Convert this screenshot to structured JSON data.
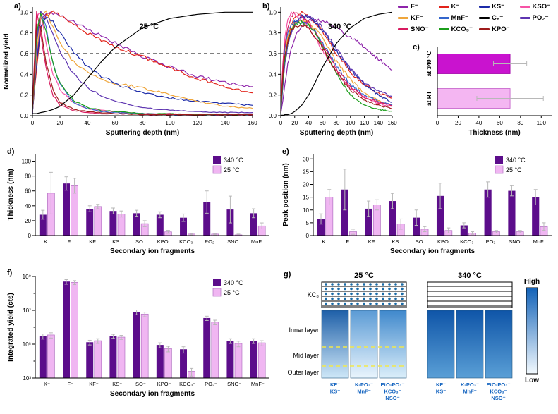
{
  "legend": {
    "items": [
      {
        "label": "F⁻",
        "color": "#8E24AA"
      },
      {
        "label": "K⁻",
        "color": "#E2231A"
      },
      {
        "label": "KS⁻",
        "color": "#1C2BA8"
      },
      {
        "label": "KSO⁻",
        "color": "#F653A6"
      },
      {
        "label": "KF⁻",
        "color": "#EFA63C"
      },
      {
        "label": "MnF⁻",
        "color": "#3366CC"
      },
      {
        "label": "C₈⁻",
        "color": "#000000"
      },
      {
        "label": "PO₂⁻",
        "color": "#5E35B1"
      },
      {
        "label": "SNO⁻",
        "color": "#D81B60"
      },
      {
        "label": "KCO₃⁻",
        "color": "#1B9E1B"
      },
      {
        "label": "KPO⁻",
        "color": "#9E1B1B"
      }
    ]
  },
  "chart_data": [
    {
      "id": "a",
      "type": "line",
      "panel_label": "a)",
      "annotation": "25 °C",
      "xlabel": "Sputtering depth (nm)",
      "ylabel": "Normalized yield",
      "xlim": [
        0,
        160
      ],
      "ylim": [
        0,
        1.05
      ],
      "xticks": [
        0,
        20,
        40,
        60,
        80,
        100,
        120,
        140,
        160
      ],
      "yticks": [
        0.0,
        0.2,
        0.4,
        0.6,
        0.8,
        1.0
      ],
      "dashed_y": 0.6,
      "x": [
        0,
        3,
        6,
        10,
        15,
        20,
        30,
        40,
        50,
        60,
        80,
        100,
        120,
        140,
        160
      ],
      "series": [
        {
          "name": "F⁻",
          "values": [
            0.02,
            0.55,
            0.92,
            1.0,
            0.99,
            0.97,
            0.91,
            0.84,
            0.77,
            0.7,
            0.57,
            0.47,
            0.38,
            0.32,
            0.28
          ]
        },
        {
          "name": "K⁻",
          "values": [
            0.03,
            0.45,
            0.85,
            0.98,
            1.0,
            0.97,
            0.88,
            0.8,
            0.73,
            0.67,
            0.57,
            0.46,
            0.36,
            0.28,
            0.22
          ]
        },
        {
          "name": "KS⁻",
          "values": [
            0.02,
            0.5,
            0.85,
            0.95,
            0.9,
            0.8,
            0.62,
            0.48,
            0.38,
            0.31,
            0.22,
            0.17,
            0.14,
            0.12,
            0.1
          ]
        },
        {
          "name": "KSO⁻",
          "values": [
            0.05,
            0.95,
            1.0,
            0.7,
            0.4,
            0.25,
            0.12,
            0.07,
            0.05,
            0.04,
            0.02,
            0.02,
            0.01,
            0.01,
            0.01
          ]
        },
        {
          "name": "KF⁻",
          "values": [
            0.03,
            0.6,
            0.95,
            1.0,
            0.85,
            0.7,
            0.52,
            0.43,
            0.36,
            0.31,
            0.27,
            0.2,
            0.14,
            0.09,
            0.07
          ]
        },
        {
          "name": "MnF⁻",
          "values": [
            0.05,
            0.75,
            1.0,
            0.85,
            0.5,
            0.3,
            0.13,
            0.07,
            0.04,
            0.03,
            0.02,
            0.01,
            0.01,
            0.01,
            0.01
          ]
        },
        {
          "name": "PO₂⁻",
          "values": [
            0.04,
            0.7,
            1.0,
            0.95,
            0.8,
            0.62,
            0.4,
            0.27,
            0.19,
            0.14,
            0.08,
            0.05,
            0.04,
            0.03,
            0.03
          ]
        },
        {
          "name": "SNO⁻",
          "values": [
            0.1,
            1.0,
            0.8,
            0.45,
            0.2,
            0.1,
            0.05,
            0.03,
            0.02,
            0.02,
            0.01,
            0.01,
            0.01,
            0.01,
            0.01
          ]
        },
        {
          "name": "KCO₃⁻",
          "values": [
            0.05,
            0.8,
            1.0,
            0.8,
            0.5,
            0.32,
            0.15,
            0.08,
            0.05,
            0.04,
            0.02,
            0.02,
            0.01,
            0.01,
            0.01
          ]
        },
        {
          "name": "KPO⁻",
          "values": [
            0.06,
            0.9,
            0.85,
            0.5,
            0.25,
            0.13,
            0.06,
            0.04,
            0.03,
            0.02,
            0.01,
            0.01,
            0.01,
            0.01,
            0.01
          ]
        },
        {
          "name": "C₈⁻",
          "smooth": true,
          "values": [
            0.02,
            0.02,
            0.03,
            0.04,
            0.06,
            0.09,
            0.2,
            0.36,
            0.52,
            0.66,
            0.85,
            0.94,
            0.98,
            1.0,
            1.0
          ]
        }
      ]
    },
    {
      "id": "b",
      "type": "line",
      "panel_label": "b)",
      "annotation": "340 °C",
      "xlabel": "Sputtering depth (nm)",
      "ylabel": "",
      "xlim": [
        0,
        160
      ],
      "ylim": [
        0,
        1.05
      ],
      "xticks": [
        0,
        20,
        40,
        60,
        80,
        100,
        120,
        140,
        160
      ],
      "yticks": [
        0.0,
        0.2,
        0.4,
        0.6,
        0.8,
        1.0
      ],
      "dashed_y": 0.6,
      "x": [
        0,
        3,
        6,
        10,
        15,
        20,
        30,
        40,
        50,
        60,
        80,
        100,
        120,
        140,
        160
      ],
      "series": [
        {
          "name": "F⁻",
          "values": [
            0.02,
            0.15,
            0.3,
            0.5,
            0.65,
            0.75,
            0.87,
            0.92,
            0.93,
            0.92,
            0.85,
            0.76,
            0.66,
            0.55,
            0.44
          ]
        },
        {
          "name": "K⁻",
          "values": [
            0.03,
            0.35,
            0.55,
            0.75,
            0.88,
            0.95,
            1.0,
            0.97,
            0.9,
            0.82,
            0.6,
            0.42,
            0.3,
            0.22,
            0.17
          ]
        },
        {
          "name": "KS⁻",
          "values": [
            0.02,
            0.3,
            0.5,
            0.68,
            0.82,
            0.9,
            0.96,
            0.95,
            0.9,
            0.82,
            0.62,
            0.45,
            0.3,
            0.2,
            0.13
          ]
        },
        {
          "name": "KSO⁻",
          "values": [
            0.05,
            0.5,
            0.75,
            0.92,
            1.0,
            0.98,
            0.92,
            0.85,
            0.75,
            0.63,
            0.42,
            0.27,
            0.18,
            0.12,
            0.09
          ]
        },
        {
          "name": "KF⁻",
          "values": [
            0.03,
            0.4,
            0.6,
            0.75,
            0.85,
            0.9,
            0.93,
            0.9,
            0.84,
            0.75,
            0.52,
            0.35,
            0.22,
            0.15,
            0.1
          ]
        },
        {
          "name": "MnF⁻",
          "values": [
            0.04,
            0.45,
            0.65,
            0.8,
            0.88,
            0.92,
            0.9,
            0.87,
            0.8,
            0.7,
            0.48,
            0.3,
            0.2,
            0.14,
            0.1
          ]
        },
        {
          "name": "PO₂⁻",
          "values": [
            0.03,
            0.3,
            0.5,
            0.68,
            0.8,
            0.88,
            0.95,
            0.96,
            0.92,
            0.85,
            0.65,
            0.45,
            0.32,
            0.24,
            0.18
          ]
        },
        {
          "name": "SNO⁻",
          "values": [
            0.06,
            0.5,
            0.7,
            0.85,
            0.95,
            1.0,
            0.95,
            0.9,
            0.8,
            0.68,
            0.45,
            0.28,
            0.18,
            0.13,
            0.1
          ]
        },
        {
          "name": "KCO₃⁻",
          "values": [
            0.04,
            0.35,
            0.55,
            0.7,
            0.82,
            0.88,
            0.9,
            0.88,
            0.8,
            0.68,
            0.4,
            0.2,
            0.1,
            0.06,
            0.04
          ]
        },
        {
          "name": "KPO⁻",
          "values": [
            0.05,
            0.4,
            0.6,
            0.72,
            0.82,
            0.87,
            0.88,
            0.84,
            0.76,
            0.65,
            0.42,
            0.25,
            0.15,
            0.1,
            0.07
          ]
        },
        {
          "name": "C₈⁻",
          "smooth": true,
          "values": [
            0.0,
            0.0,
            0.01,
            0.01,
            0.02,
            0.04,
            0.1,
            0.2,
            0.33,
            0.47,
            0.7,
            0.85,
            0.94,
            0.98,
            1.0
          ]
        }
      ]
    },
    {
      "id": "c",
      "type": "hbar",
      "panel_label": "c)",
      "categories": [
        "at 340 °C",
        "at RT"
      ],
      "values": [
        70,
        70
      ],
      "errors": [
        16,
        32
      ],
      "colors": [
        "#C913CF",
        "#F4B6F2"
      ],
      "edge_colors": [
        "#A000A8",
        "#C45EC9"
      ],
      "xlabel": "Thickness (nm)",
      "xlim": [
        0,
        110
      ],
      "xticks": [
        0,
        20,
        40,
        60,
        80,
        100
      ]
    },
    {
      "id": "d",
      "type": "bar",
      "panel_label": "d)",
      "ylabel": "Thickness (nm)",
      "xlabel": "Secondary ion fragments",
      "ylim": [
        0,
        110
      ],
      "yticks": [
        0,
        20,
        40,
        60,
        80,
        100
      ],
      "categories": [
        "K⁻",
        "F⁻",
        "KF⁻",
        "KS⁻",
        "SO⁻",
        "KPO⁻",
        "KCO₃⁻",
        "PO₂⁻",
        "SNO⁻",
        "MnF⁻"
      ],
      "series": [
        {
          "name": "340 °C",
          "color": "#5C0D8B",
          "values": [
            28,
            70,
            36,
            33,
            30,
            28,
            24,
            45,
            35,
            30
          ],
          "errors": [
            6,
            9,
            4,
            4,
            4,
            4,
            5,
            15,
            18,
            6
          ]
        },
        {
          "name": "25 °C",
          "color": "#F0B6F2",
          "values": [
            57,
            67,
            39,
            29,
            16,
            5,
            2,
            2,
            1,
            13
          ],
          "errors": [
            28,
            10,
            3,
            4,
            4,
            2,
            1,
            1,
            1,
            4
          ]
        }
      ]
    },
    {
      "id": "e",
      "type": "bar",
      "panel_label": "e)",
      "ylabel": "Peak position (nm)",
      "xlabel": "Secondary ion fragments",
      "ylim": [
        0,
        32
      ],
      "yticks": [
        0,
        5,
        10,
        15,
        20,
        25,
        30
      ],
      "categories": [
        "K⁻",
        "F⁻",
        "KF⁻",
        "KS⁻",
        "SO⁻",
        "KPO⁻",
        "KCO₃⁻",
        "PO₂⁻",
        "SNO⁻",
        "MnF⁻"
      ],
      "series": [
        {
          "name": "340 °C",
          "color": "#5C0D8B",
          "values": [
            6.5,
            18,
            10.5,
            13.5,
            7,
            15.5,
            4,
            18,
            17.5,
            15
          ],
          "errors": [
            2,
            8,
            3,
            3,
            3,
            5,
            1,
            3,
            2,
            3
          ]
        },
        {
          "name": "25 °C",
          "color": "#F0B6F2",
          "values": [
            15,
            1.5,
            12,
            4.5,
            2.5,
            2,
            1,
            1.5,
            1.5,
            3.5
          ],
          "errors": [
            3,
            1,
            2,
            2,
            1,
            1,
            0.5,
            0.5,
            0.5,
            1.5
          ]
        }
      ]
    },
    {
      "id": "f",
      "type": "bar-log",
      "panel_label": "f)",
      "ylabel": "Integrated yield (cts)",
      "xlabel": "Secondary ion fragments",
      "ylim_exp": [
        3,
        9
      ],
      "ytick_exps": [
        3,
        5,
        7,
        9
      ],
      "ytick_labels": [
        "10³",
        "10⁵",
        "10⁷",
        "10⁹"
      ],
      "minor_exps": [
        4,
        6,
        8
      ],
      "categories": [
        "K⁻",
        "F⁻",
        "KF⁻",
        "KS⁻",
        "SO⁻",
        "KPO⁻",
        "KCO₃⁻",
        "PO₂⁻",
        "SNO⁻",
        "MnF⁻"
      ],
      "series": [
        {
          "name": "340 °C",
          "color": "#5C0D8B",
          "values": [
            300000,
            500000000,
            130000,
            300000,
            8000000,
            90000,
            50000,
            3500000,
            160000,
            160000
          ],
          "errors": [
            100000,
            150000000,
            40000,
            80000,
            2500000,
            30000,
            20000,
            1000000,
            50000,
            50000
          ]
        },
        {
          "name": "25 °C",
          "color": "#F0B6F2",
          "values": [
            350000,
            450000000,
            160000,
            260000,
            6000000,
            55000,
            2500,
            2000000,
            110000,
            120000
          ],
          "errors": [
            120000,
            120000000,
            50000,
            70000,
            1800000,
            20000,
            1200,
            600000,
            40000,
            40000
          ]
        }
      ]
    }
  ],
  "panel_g": {
    "panel_label": "g)",
    "col_headers": [
      "25 °C",
      "340 °C"
    ],
    "row_labels": [
      "KC₈",
      "Inner layer",
      "Mid layer",
      "Outer layer"
    ],
    "group_labels": [
      [
        "KF⁻",
        "KS⁻"
      ],
      [
        "K-PO₂⁻",
        "MnF⁻"
      ],
      [
        "EtO-PO₂⁻",
        "KCO₃⁻",
        "NSO⁻"
      ]
    ],
    "colorbar": {
      "high": "High",
      "low": "Low",
      "top_color": "#1262B8",
      "bottom_color": "#F2F9FE"
    },
    "dot_color": "#1B6CA8",
    "label_color": "#1565C0",
    "dashed_line_color": "#F2E84B",
    "gradients": {
      "cold": [
        [
          "#1E5FA8",
          "#CFE8F8"
        ],
        [
          "#5B9BD5",
          "#EAF5FD"
        ],
        [
          "#3F88CC",
          "#DCEFFA"
        ]
      ],
      "hot": [
        [
          "#0F55A8",
          "#5A9FD6"
        ],
        [
          "#0F55A8",
          "#5A9FD6"
        ],
        [
          "#0F55A8",
          "#5A9FD6"
        ]
      ]
    }
  }
}
